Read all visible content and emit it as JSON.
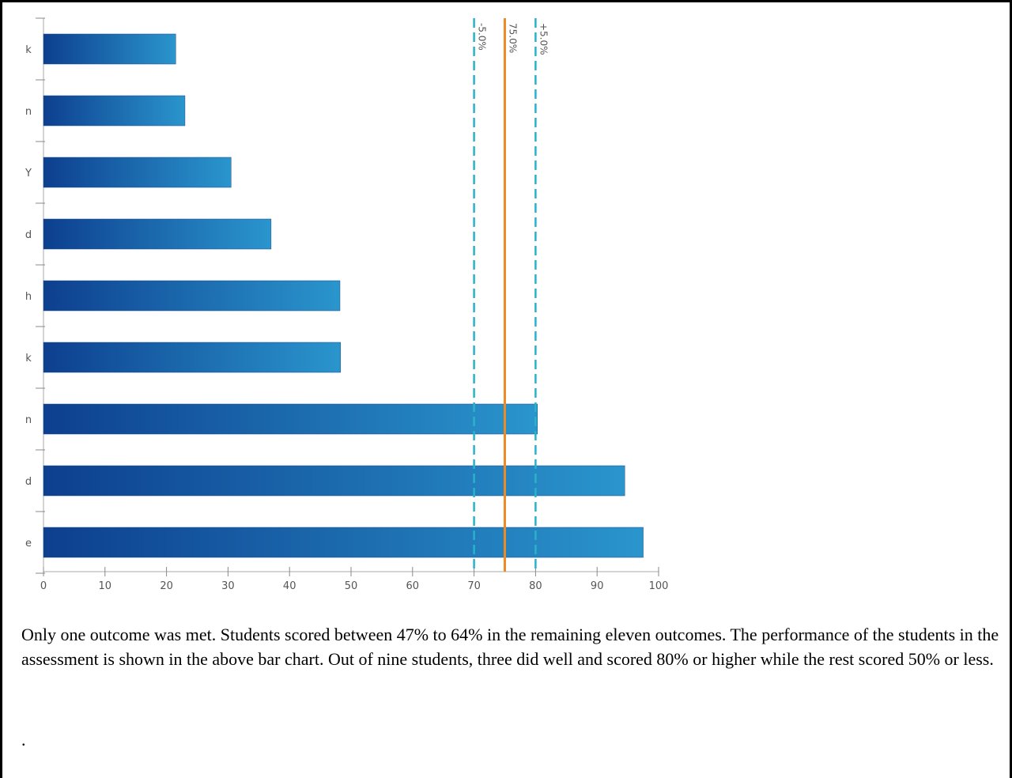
{
  "chart_data": {
    "type": "bar",
    "orientation": "horizontal",
    "categories": [
      "k",
      "n",
      "Y",
      "d",
      "h",
      "k",
      "n",
      "d",
      "e"
    ],
    "values": [
      21.5,
      23,
      30.5,
      37,
      48.2,
      48.3,
      80.3,
      94.5,
      97.5
    ],
    "xlim": [
      0,
      100
    ],
    "xticks": [
      0,
      10,
      20,
      30,
      40,
      50,
      60,
      70,
      80,
      90,
      100
    ],
    "reference_lines": [
      {
        "value": 70,
        "label": "-5.0%",
        "style": "dashed",
        "color": "#29b2c9"
      },
      {
        "value": 75,
        "label": "75.0%",
        "style": "solid",
        "color": "#f08a24"
      },
      {
        "value": 80,
        "label": "+5.0%",
        "style": "dashed",
        "color": "#29b2c9"
      }
    ],
    "bar_gradient": [
      "#0d3f8f",
      "#2a95cd"
    ],
    "grid": false
  },
  "description": "Only one outcome was met. Students scored between 47% to 64% in the remaining eleven outcomes. The performance of the students in the assessment is shown in the above bar chart.  Out of nine students, three did well and scored 80% or higher while the rest scored 50% or less.",
  "trailing_text": "."
}
